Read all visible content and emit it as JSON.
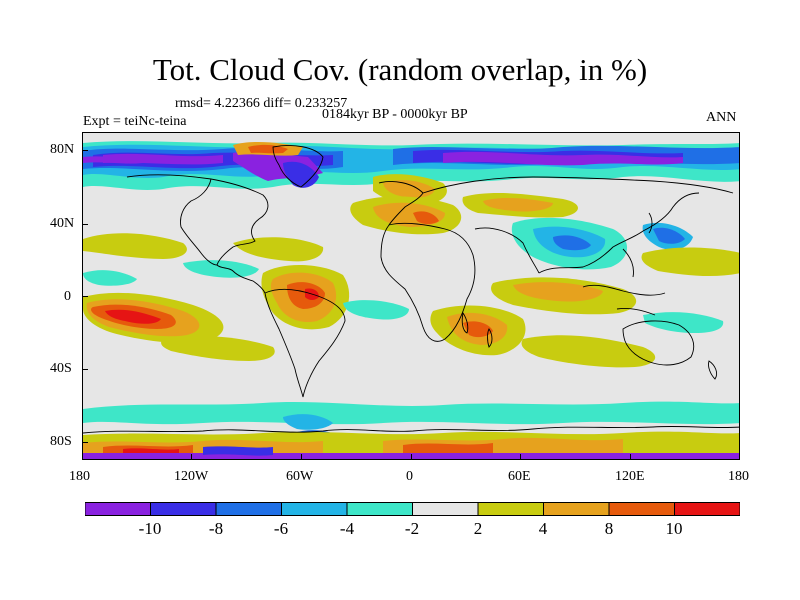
{
  "title": "Tot. Cloud Cov. (random overlap, in %)",
  "stats": "rmsd= 4.22366 diff= 0.233257",
  "experiment": "Expt = teiNc-teina",
  "period": "0184kyr BP - 0000kyr BP",
  "season": "ANN",
  "lat_labels": [
    "80N",
    "40N",
    "0",
    "40S",
    "80S"
  ],
  "lon_labels": [
    "180",
    "120W",
    "60W",
    "0",
    "60E",
    "120E",
    "180"
  ],
  "colorbar": {
    "labels": [
      "-10",
      "-8",
      "-6",
      "-4",
      "-2",
      "2",
      "4",
      "8",
      "10"
    ],
    "colors": [
      "#8a22e0",
      "#3a2ee6",
      "#1f6fe6",
      "#23b4e6",
      "#3ee6c8",
      "#e6e6e6",
      "#c8cc10",
      "#e6a21e",
      "#e65a0c",
      "#e61414"
    ]
  },
  "map_colors": {
    "ocean_background": "#e6e6e6",
    "coastline": "#000000"
  }
}
